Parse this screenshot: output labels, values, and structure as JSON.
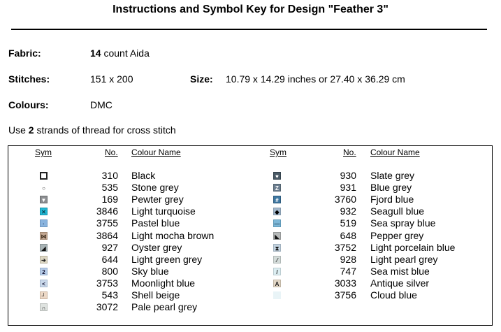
{
  "title": "Instructions and Symbol Key for Design \"Feather 3\"",
  "fabric": {
    "label": "Fabric:",
    "count": "14",
    "rest": "count Aida"
  },
  "stitches": {
    "label": "Stitches:",
    "value": "151 x 200"
  },
  "size": {
    "label": "Size:",
    "value": "10.79 x 14.29 inches or 27.40 x 36.29 cm"
  },
  "colours": {
    "label": "Colours:",
    "value": "DMC"
  },
  "strands": {
    "pre": "Use",
    "count": "2",
    "post": "strands of thread for cross stitch"
  },
  "headers": {
    "sym": "Sym",
    "no": "No.",
    "name": "Colour Name"
  },
  "left": [
    {
      "no": "310",
      "name": "Black",
      "bg": "#ffffff",
      "border": "#222222",
      "glyph": "",
      "fg": "#000000",
      "icon": "square-outline-icon"
    },
    {
      "no": "535",
      "name": "Stone grey",
      "bg": "#ffffff",
      "border": "#ffffff",
      "glyph": "○",
      "fg": "#222222",
      "icon": "circle-icon"
    },
    {
      "no": "169",
      "name": "Pewter grey",
      "bg": "#8c8e91",
      "border": "#6a6c6e",
      "glyph": "▼",
      "fg": "#ffffff",
      "icon": "triangle-down-icon"
    },
    {
      "no": "3846",
      "name": "Light turquoise",
      "bg": "#22b8d4",
      "border": "#1590a8",
      "glyph": "✕",
      "fg": "#0a3a4a",
      "icon": "cross-icon"
    },
    {
      "no": "3755",
      "name": "Pastel blue",
      "bg": "#8ab4de",
      "border": "#6f97c0",
      "glyph": "·",
      "fg": "#203a5a",
      "icon": "dot-icon"
    },
    {
      "no": "3864",
      "name": "Light mocha brown",
      "bg": "#c0a590",
      "border": "#a38973",
      "glyph": "⋈",
      "fg": "#3a2a1a",
      "icon": "bowtie-icon"
    },
    {
      "no": "927",
      "name": "Oyster grey",
      "bg": "#a8b3b5",
      "border": "#8a9597",
      "glyph": "◢",
      "fg": "#101010",
      "icon": "corner-triangle-icon"
    },
    {
      "no": "644",
      "name": "Light green grey",
      "bg": "#ddd7c3",
      "border": "#b8b29e",
      "glyph": "➔",
      "fg": "#202020",
      "icon": "arrow-icon"
    },
    {
      "no": "800",
      "name": "Sky blue",
      "bg": "#b6cce8",
      "border": "#97aecb",
      "glyph": "2",
      "fg": "#101030",
      "icon": "two-icon"
    },
    {
      "no": "3753",
      "name": "Moonlight blue",
      "bg": "#c9d8ea",
      "border": "#a8b9cf",
      "glyph": "<",
      "fg": "#101030",
      "icon": "less-than-icon"
    },
    {
      "no": "543",
      "name": "Shell beige",
      "bg": "#ecd8c6",
      "border": "#c9b4a1",
      "glyph": "┘",
      "fg": "#202020",
      "icon": "corner-icon"
    },
    {
      "no": "3072",
      "name": "Pale pearl grey",
      "bg": "#dfe3e0",
      "border": "#b9bdba",
      "glyph": "∩",
      "fg": "#101010",
      "icon": "arch-icon"
    }
  ],
  "right": [
    {
      "no": "930",
      "name": "Slate grey",
      "bg": "#4a5a66",
      "border": "#34424c",
      "glyph": "♥",
      "fg": "#ffffff",
      "icon": "heart-icon"
    },
    {
      "no": "931",
      "name": "Blue grey",
      "bg": "#6c7e90",
      "border": "#52636f",
      "glyph": "Z",
      "fg": "#ffffff",
      "icon": "z-icon"
    },
    {
      "no": "3760",
      "name": "Fjord blue",
      "bg": "#3f78a2",
      "border": "#2e5c7e",
      "glyph": "#",
      "fg": "#ffffff",
      "icon": "hash-icon"
    },
    {
      "no": "932",
      "name": "Seagull blue",
      "bg": "#a3b8cc",
      "border": "#869bae",
      "glyph": "◆",
      "fg": "#000000",
      "icon": "diamond-icon"
    },
    {
      "no": "519",
      "name": "Sea spray blue",
      "bg": "#7eb8d8",
      "border": "#5f99b8",
      "glyph": "—",
      "fg": "#1a3a50",
      "icon": "dash-icon"
    },
    {
      "no": "648",
      "name": "Pepper grey",
      "bg": "#b5b8b8",
      "border": "#959898",
      "glyph": "◣",
      "fg": "#101010",
      "icon": "triangle-corner-icon"
    },
    {
      "no": "3752",
      "name": "Light porcelain blue",
      "bg": "#c2d2df",
      "border": "#a1b1be",
      "glyph": "⧗",
      "fg": "#101010",
      "icon": "hourglass-icon"
    },
    {
      "no": "928",
      "name": "Light pearl grey",
      "bg": "#d3dbd9",
      "border": "#b0b8b6",
      "glyph": "⁄",
      "fg": "#202020",
      "icon": "slash-pair-icon"
    },
    {
      "no": "747",
      "name": "Sea mist blue",
      "bg": "#dceef2",
      "border": "#bccdd1",
      "glyph": "/",
      "fg": "#202020",
      "icon": "slash-icon"
    },
    {
      "no": "3033",
      "name": "Antique silver",
      "bg": "#e2d7c6",
      "border": "#c0b5a4",
      "glyph": "A",
      "fg": "#202020",
      "icon": "a-icon"
    },
    {
      "no": "3756",
      "name": "Cloud blue",
      "bg": "#e9f4f7",
      "border": "#e9f4f7",
      "glyph": "",
      "fg": "#202020",
      "icon": "blank-swatch-icon"
    }
  ]
}
